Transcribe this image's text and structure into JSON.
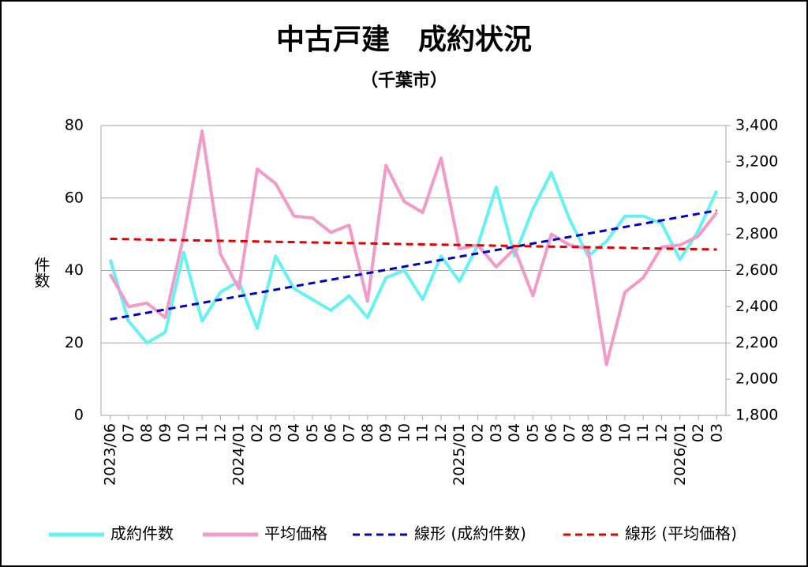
{
  "chart_data": {
    "type": "line",
    "title": "中古戸建　成約状況",
    "subtitle": "（千葉市）",
    "y_label": "件数",
    "categories": [
      "2023/06",
      "07",
      "08",
      "09",
      "10",
      "11",
      "12",
      "2024/01",
      "02",
      "03",
      "04",
      "05",
      "06",
      "07",
      "08",
      "09",
      "10",
      "11",
      "12",
      "2025/01",
      "02",
      "03",
      "04",
      "05",
      "06",
      "07",
      "08",
      "09",
      "10",
      "11",
      "12",
      "2026/01",
      "02",
      "03"
    ],
    "series": [
      {
        "name": "成約件数",
        "color": "#66f2f2",
        "axis": "y",
        "values": [
          43,
          26,
          20,
          23,
          45,
          26,
          34,
          37,
          24,
          44,
          35,
          32,
          29,
          33,
          27,
          38,
          40,
          32,
          44,
          37,
          47,
          63,
          44,
          57,
          67,
          54,
          44,
          48,
          55,
          55,
          53,
          43,
          51,
          62
        ]
      },
      {
        "name": "平均価格",
        "color": "#f29ac8",
        "axis": "y2",
        "values": [
          2580,
          2400,
          2420,
          2340,
          2790,
          3370,
          2690,
          2500,
          3160,
          3080,
          2900,
          2890,
          2810,
          2850,
          2430,
          3180,
          2980,
          2920,
          3220,
          2720,
          2740,
          2620,
          2720,
          2460,
          2800,
          2740,
          2720,
          2080,
          2480,
          2560,
          2730,
          2740,
          2790,
          2920
        ]
      },
      {
        "name": "線形 (成約件数)",
        "color": "#0000c0",
        "trendline": "成約件数"
      },
      {
        "name": "線形 (平均価格)",
        "color": "#e00000",
        "trendline": "平均価格"
      }
    ],
    "ylim": [
      0,
      80
    ],
    "yticks": [
      0,
      20,
      40,
      60,
      80
    ],
    "y2lim": [
      1800,
      3400
    ],
    "y2ticks": [
      {
        "value": 1800,
        "label": "1,800"
      },
      {
        "value": 2000,
        "label": "2,000"
      },
      {
        "value": 2200,
        "label": "2,200"
      },
      {
        "value": 2400,
        "label": "2,400"
      },
      {
        "value": 2600,
        "label": "2,600"
      },
      {
        "value": 2800,
        "label": "2,800"
      },
      {
        "value": 3000,
        "label": "3,000"
      },
      {
        "value": 3200,
        "label": "3,200"
      },
      {
        "value": 3400,
        "label": "3,400"
      }
    ],
    "grid": true,
    "legend": "bottom"
  }
}
